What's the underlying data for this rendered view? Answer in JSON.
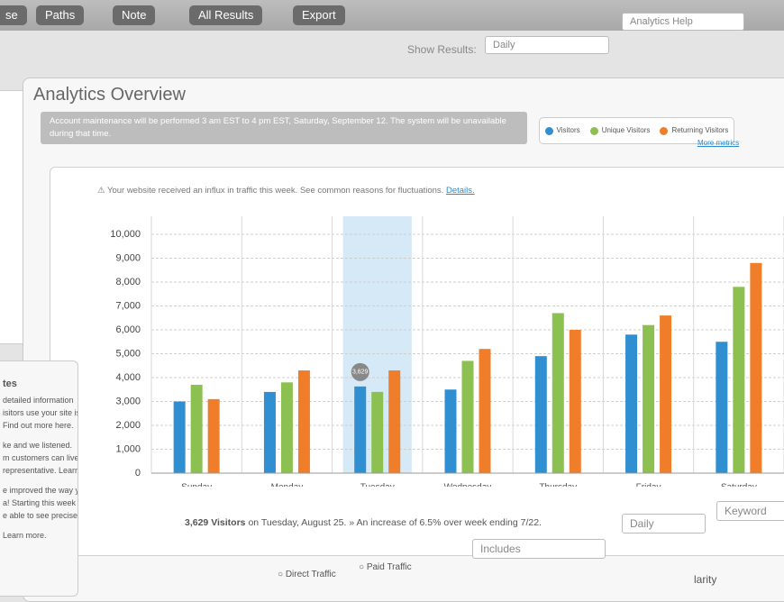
{
  "toolbar": {
    "buttons": [
      "se",
      "Paths",
      "Note",
      "All Results",
      "Export"
    ],
    "show_results_label": "Show Results:",
    "show_results_value": "Daily",
    "search": "Analytics Help"
  },
  "page_title": "Analytics Overview",
  "banner": "Account maintenance will be performed 3 am EST to 4 pm EST, Saturday, September 12. The system will be unavailable during that time.",
  "more_metrics": "More metrics",
  "alert": {
    "text": "Your website received an influx in traffic this week. See common reasons for fluctuations.",
    "link": "Details."
  },
  "footer": {
    "highlight": "3,629 Visitors",
    "text": "on Tuesday, August 25. » An increase of 6.5% over week ending 7/22."
  },
  "controls": {
    "includes": "Includes",
    "daily": "Daily",
    "keyword": "Keyword",
    "radios": [
      "Direct Traffic",
      "Paid Traffic"
    ],
    "sort": "larity"
  },
  "sidebar": {
    "heading": "tes",
    "lines": [
      "detailed information",
      "isitors use your site is",
      "Find out more here.",
      "ke and we listened.",
      "m customers can live chat",
      "representative. Learn more.",
      "e improved the way you view",
      "a! Starting this week you'll now",
      "e able to see precisely where your",
      "Learn more."
    ]
  },
  "chart_data": {
    "type": "bar",
    "categories": [
      "Sunday",
      "Monday",
      "Tuesday",
      "Wednesday",
      "Thursday",
      "Friday",
      "Saturday"
    ],
    "series": [
      {
        "name": "Visitors",
        "color": "#2f8fd0",
        "values": [
          3000,
          3400,
          3629,
          3500,
          4900,
          5800,
          5500
        ],
        "value_labels": [
          null,
          null,
          "3,629",
          null,
          null,
          null,
          null
        ]
      },
      {
        "name": "Unique Visitors",
        "color": "#8cc152",
        "values": [
          3700,
          3800,
          3400,
          4700,
          6700,
          6200,
          7800
        ]
      },
      {
        "name": "Returning Visitors",
        "color": "#f07d2a",
        "values": [
          3100,
          4300,
          4300,
          5200,
          6000,
          6600,
          8800
        ]
      }
    ],
    "ylim": [
      0,
      10000
    ],
    "yticks": [
      0,
      {
        "value": 1000,
        "label": "1,000"
      },
      {
        "value": 2000,
        "label": "2,000"
      },
      {
        "value": 3000,
        "label": "3,000"
      },
      {
        "value": 4000,
        "label": "4,000"
      },
      {
        "value": 5000,
        "label": "5,000"
      },
      {
        "value": 6000,
        "label": "6,000"
      },
      {
        "value": 7000,
        "label": "7,000"
      },
      {
        "value": 8000,
        "label": "8,000"
      },
      {
        "value": 9000,
        "label": "9,000"
      },
      {
        "value": 10000,
        "label": "10,000"
      }
    ],
    "grid": true
  }
}
